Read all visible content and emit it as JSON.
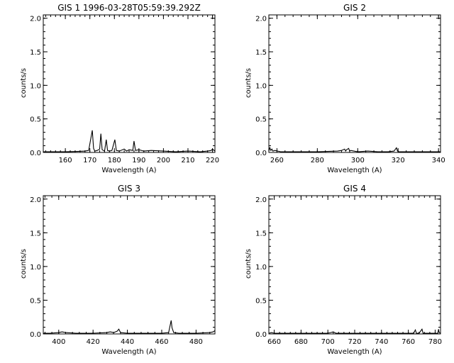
{
  "chart_data": [
    {
      "type": "line",
      "title": "GIS 1 1996-03-28T05:59:39.292Z",
      "xlabel": "Wavelength (A)",
      "ylabel": "counts/s",
      "xlim": [
        151,
        221
      ],
      "ylim": [
        0,
        2.05
      ],
      "xticks": [
        160,
        170,
        180,
        190,
        200,
        210,
        220
      ],
      "yticks": [
        0.0,
        0.5,
        1.0,
        1.5,
        2.0
      ],
      "ytick_labels": [
        "0.0",
        "0.5",
        "1.0",
        "1.5",
        "2.0"
      ],
      "grid": false,
      "series": [
        {
          "baseline": 0.01,
          "x": [
            151,
            160,
            165,
            168,
            169.5,
            171,
            171.5,
            172,
            173,
            174,
            174.5,
            175,
            176,
            176.7,
            177.2,
            178,
            179,
            180.2,
            180.8,
            182,
            184,
            185,
            186,
            187.5,
            188,
            188.6,
            190,
            192,
            195,
            200,
            205,
            210,
            215,
            218,
            219.5,
            220,
            221
          ],
          "y": [
            0.01,
            0.01,
            0.015,
            0.02,
            0.03,
            0.33,
            0.06,
            0.02,
            0.03,
            0.05,
            0.28,
            0.04,
            0.02,
            0.19,
            0.03,
            0.02,
            0.03,
            0.19,
            0.03,
            0.02,
            0.05,
            0.02,
            0.04,
            0.03,
            0.17,
            0.03,
            0.04,
            0.02,
            0.03,
            0.02,
            0.01,
            0.02,
            0.01,
            0.02,
            0.03,
            0.05,
            0.02
          ]
        }
      ]
    },
    {
      "type": "line",
      "title": "GIS 2",
      "xlabel": "Wavelength (A)",
      "ylabel": "counts/s",
      "xlim": [
        256,
        341
      ],
      "ylim": [
        0,
        2.05
      ],
      "xticks": [
        260,
        280,
        300,
        320,
        340
      ],
      "yticks": [
        0.0,
        0.5,
        1.0,
        1.5,
        2.0
      ],
      "ytick_labels": [
        "0.0",
        "0.5",
        "1.0",
        "1.5",
        "2.0"
      ],
      "grid": false,
      "series": [
        {
          "baseline": 0.01,
          "x": [
            256,
            256.5,
            257,
            257.5,
            258,
            259,
            262,
            270,
            280,
            290,
            292,
            293.5,
            294,
            294.5,
            295.5,
            296,
            296.5,
            300,
            305,
            310,
            315,
            318,
            319.2,
            319.7,
            320.5,
            325,
            330,
            335,
            341
          ],
          "y": [
            0.02,
            0.07,
            0.03,
            0.05,
            0.02,
            0.03,
            0.01,
            0.01,
            0.01,
            0.02,
            0.03,
            0.05,
            0.02,
            0.04,
            0.06,
            0.02,
            0.03,
            0.01,
            0.02,
            0.01,
            0.01,
            0.02,
            0.07,
            0.02,
            0.01,
            0.01,
            0.01,
            0.01,
            0.01
          ]
        }
      ]
    },
    {
      "type": "line",
      "title": "GIS 3",
      "xlabel": "Wavelength (A)",
      "ylabel": "counts/s",
      "xlim": [
        391,
        491
      ],
      "ylim": [
        0,
        2.05
      ],
      "xticks": [
        400,
        420,
        440,
        460,
        480
      ],
      "yticks": [
        0.0,
        0.5,
        1.0,
        1.5,
        2.0
      ],
      "ytick_labels": [
        "0.0",
        "0.5",
        "1.0",
        "1.5",
        "2.0"
      ],
      "grid": false,
      "series": [
        {
          "baseline": 0.01,
          "x": [
            391,
            395,
            400,
            402,
            404,
            410,
            420,
            428,
            430,
            432,
            434,
            435,
            436,
            440,
            450,
            460,
            464,
            465.5,
            466,
            467,
            470,
            480,
            488,
            490,
            491
          ],
          "y": [
            0.01,
            0.01,
            0.02,
            0.03,
            0.02,
            0.01,
            0.01,
            0.02,
            0.03,
            0.02,
            0.04,
            0.07,
            0.02,
            0.01,
            0.01,
            0.01,
            0.02,
            0.2,
            0.09,
            0.02,
            0.01,
            0.01,
            0.02,
            0.03,
            0.05
          ]
        }
      ]
    },
    {
      "type": "line",
      "title": "GIS 4",
      "xlabel": "Wavelength (A)",
      "ylabel": "counts/s",
      "xlim": [
        656,
        784
      ],
      "ylim": [
        0,
        2.05
      ],
      "xticks": [
        660,
        680,
        700,
        720,
        740,
        760,
        780
      ],
      "yticks": [
        0.0,
        0.5,
        1.0,
        1.5,
        2.0
      ],
      "ytick_labels": [
        "0.0",
        "0.5",
        "1.0",
        "1.5",
        "2.0"
      ],
      "grid": false,
      "series": [
        {
          "baseline": 0.01,
          "x": [
            656,
            658,
            660,
            680,
            700,
            702,
            704,
            706,
            720,
            740,
            750,
            760,
            764,
            765.2,
            766,
            768,
            770.2,
            771,
            775,
            780,
            782,
            782.5,
            783,
            784
          ],
          "y": [
            0.01,
            0.02,
            0.01,
            0.01,
            0.01,
            0.02,
            0.03,
            0.01,
            0.01,
            0.01,
            0.01,
            0.01,
            0.01,
            0.06,
            0.01,
            0.01,
            0.07,
            0.01,
            0.01,
            0.01,
            0.01,
            0.07,
            0.02,
            0.01
          ]
        }
      ]
    }
  ]
}
